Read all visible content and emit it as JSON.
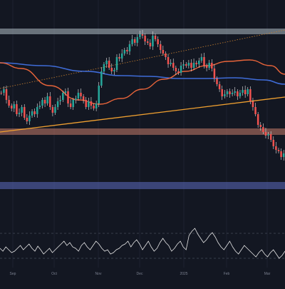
{
  "colors": {
    "background": "#131722",
    "grid": "#1c2030",
    "candle_up": "#26a69a",
    "candle_down": "#ffffff",
    "candle_down_body": "#ef5350",
    "wick": "#e6e6e6",
    "ma_orange": "#e8643a",
    "ma_blue": "#3f6cd8",
    "trend_line": "#f0a030",
    "trend_dotted": "#c88030",
    "zone_top": "#b0bec5",
    "zone_mid": "#d7866f",
    "zone_bottom": "#5c6bc0",
    "oscillator": "#e6e6e6",
    "axis_text": "#7b8090"
  },
  "icons": [
    "candlestick-chart-icon"
  ],
  "chart_data": {
    "type": "candlestick",
    "title": "",
    "xlabel": "",
    "ylabel": "",
    "x_ticks": [
      "Sep",
      "Oct",
      "Nov",
      "Dec",
      "2025",
      "Feb",
      "Mar"
    ],
    "panels": [
      "price",
      "oscillator"
    ],
    "zones": [
      {
        "name": "resistance-zone",
        "color": "#b0bec5"
      },
      {
        "name": "support-zone",
        "color": "#d7866f"
      },
      {
        "name": "demand-zone",
        "color": "#5c6bc0"
      }
    ],
    "series": [
      {
        "type": "moving-average",
        "color": "#e8643a"
      },
      {
        "type": "moving-average",
        "color": "#3f6cd8"
      },
      {
        "type": "trendline",
        "style": "solid",
        "color": "#f0a030"
      },
      {
        "type": "trendline",
        "style": "dotted",
        "color": "#c88030"
      }
    ],
    "grid": true
  }
}
